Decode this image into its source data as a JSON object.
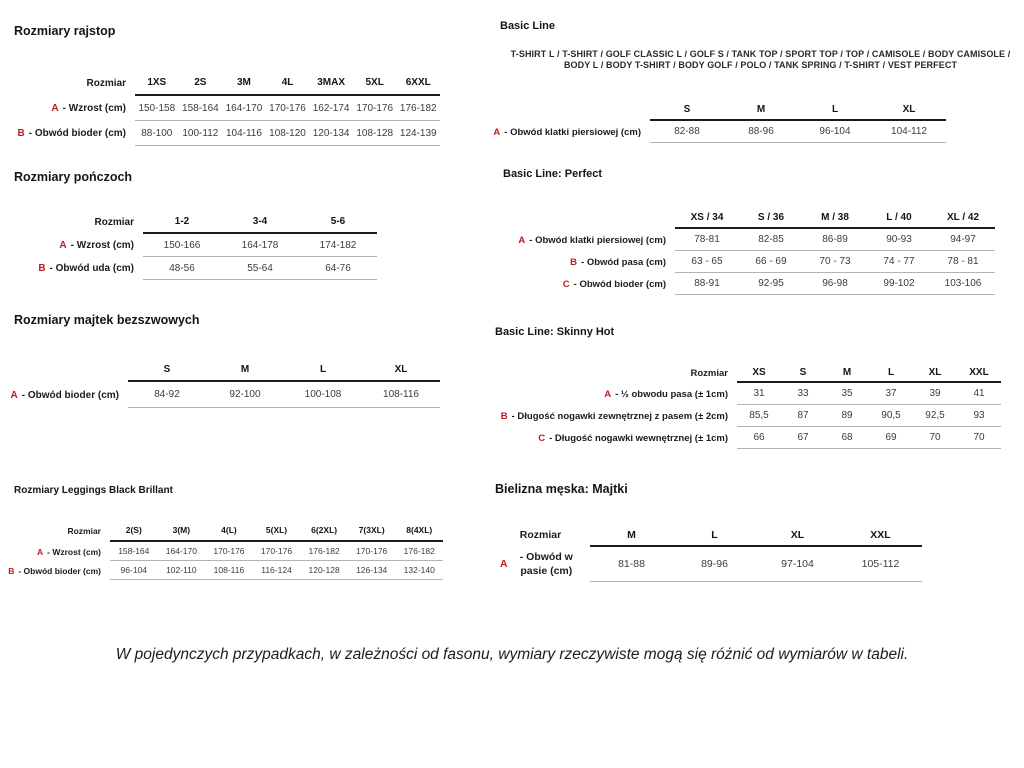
{
  "sections": {
    "rajstop": {
      "title": "Rozmiary rajstop",
      "table": {
        "corner": "Rozmiar",
        "columns": [
          "1XS",
          "2S",
          "3M",
          "4L",
          "3MAX",
          "5XL",
          "6XXL"
        ],
        "rows": [
          {
            "prefix": "A",
            "label": "- Wzrost (cm)",
            "values": [
              "150-158",
              "158-164",
              "164-170",
              "170-176",
              "162-174",
              "170-176",
              "176-182"
            ]
          },
          {
            "prefix": "B",
            "label": "- Obwód bioder (cm)",
            "values": [
              "88-100",
              "100-112",
              "104-116",
              "108-120",
              "120-134",
              "108-128",
              "124-139"
            ]
          }
        ]
      }
    },
    "ponczochy": {
      "title": "Rozmiary pończoch",
      "table": {
        "corner": "Rozmiar",
        "columns": [
          "1-2",
          "3-4",
          "5-6"
        ],
        "rows": [
          {
            "prefix": "A",
            "label": "- Wzrost (cm)",
            "values": [
              "150-166",
              "164-178",
              "174-182"
            ]
          },
          {
            "prefix": "B",
            "label": "- Obwód uda (cm)",
            "values": [
              "48-56",
              "55-64",
              "64-76"
            ]
          }
        ]
      }
    },
    "majtki_bezszwowe": {
      "title": "Rozmiary majtek bezszwowych",
      "table": {
        "corner": "",
        "columns": [
          "S",
          "M",
          "L",
          "XL"
        ],
        "rows": [
          {
            "prefix": "A",
            "label": "- Obwód bioder (cm)",
            "values": [
              "84-92",
              "92-100",
              "100-108",
              "108-116"
            ]
          }
        ]
      }
    },
    "leggings": {
      "title": "Rozmiary Leggings Black Brillant",
      "table": {
        "corner": "Rozmiar",
        "columns": [
          "2(S)",
          "3(M)",
          "4(L)",
          "5(XL)",
          "6(2XL)",
          "7(3XL)",
          "8(4XL)"
        ],
        "rows": [
          {
            "prefix": "A",
            "label": "- Wzrost (cm)",
            "values": [
              "158-164",
              "164-170",
              "170-176",
              "170-176",
              "176-182",
              "170-176",
              "176-182"
            ]
          },
          {
            "prefix": "B",
            "label": "- Obwód bioder (cm)",
            "values": [
              "96-104",
              "102-110",
              "108-116",
              "116-124",
              "120-128",
              "126-134",
              "132-140"
            ]
          }
        ]
      }
    },
    "basic_line": {
      "title": "Basic Line",
      "products": "T-SHIRT L / T-SHIRT / GOLF CLASSIC L / GOLF S / TANK TOP / SPORT TOP / TOP / CAMISOLE / BODY CAMISOLE / BODY L / BODY T-SHIRT / BODY GOLF / POLO / TANK SPRING / T-SHIRT / VEST PERFECT",
      "table": {
        "corner": "",
        "columns": [
          "S",
          "M",
          "L",
          "XL"
        ],
        "rows": [
          {
            "prefix": "A",
            "label": "- Obwód klatki piersiowej (cm)",
            "values": [
              "82-88",
              "88-96",
              "96-104",
              "104-112"
            ]
          }
        ]
      }
    },
    "basic_line_perfect": {
      "title": "Basic Line: Perfect",
      "table": {
        "corner": "",
        "columns": [
          "XS / 34",
          "S / 36",
          "M / 38",
          "L / 40",
          "XL / 42"
        ],
        "rows": [
          {
            "prefix": "A",
            "label": "- Obwód klatki piersiowej (cm)",
            "values": [
              "78-81",
              "82-85",
              "86-89",
              "90-93",
              "94-97"
            ]
          },
          {
            "prefix": "B",
            "label": "- Obwód pasa (cm)",
            "values": [
              "63 - 65",
              "66 - 69",
              "70 - 73",
              "74 - 77",
              "78 - 81"
            ]
          },
          {
            "prefix": "C",
            "label": "- Obwód bioder (cm)",
            "values": [
              "88-91",
              "92-95",
              "96-98",
              "99-102",
              "103-106"
            ]
          }
        ]
      }
    },
    "basic_line_skinny_hot": {
      "title": "Basic Line: Skinny Hot",
      "table": {
        "corner": "Rozmiar",
        "columns": [
          "XS",
          "S",
          "M",
          "L",
          "XL",
          "XXL"
        ],
        "rows": [
          {
            "prefix": "A",
            "label": "- ½ obwodu pasa (± 1cm)",
            "values": [
              "31",
              "33",
              "35",
              "37",
              "39",
              "41"
            ]
          },
          {
            "prefix": "B",
            "label": "- Długość nogawki zewnętrznej z pasem (± 2cm)",
            "values": [
              "85,5",
              "87",
              "89",
              "90,5",
              "92,5",
              "93"
            ]
          },
          {
            "prefix": "C",
            "label": "- Długość nogawki wewnętrznej (± 1cm)",
            "values": [
              "66",
              "67",
              "68",
              "69",
              "70",
              "70"
            ]
          }
        ]
      }
    },
    "bielizna_meska": {
      "title": "Bielizna męska: Majtki",
      "table": {
        "corner": "Rozmiar",
        "columns": [
          "M",
          "L",
          "XL",
          "XXL"
        ],
        "rows": [
          {
            "prefix": "A",
            "label": "- Obwód w pasie (cm)",
            "values": [
              "81-88",
              "89-96",
              "97-104",
              "105-112"
            ]
          }
        ]
      }
    }
  },
  "footer": {
    "note": "W pojedynczych przypadkach, w zależności od fasonu, wymiary rzeczywiste mogą się różnić od wymiarów w tabeli."
  },
  "colors": {
    "accent_red": "#bf1a1f",
    "header_line": "#1c1c1c",
    "row_line": "#b3b3b3"
  }
}
